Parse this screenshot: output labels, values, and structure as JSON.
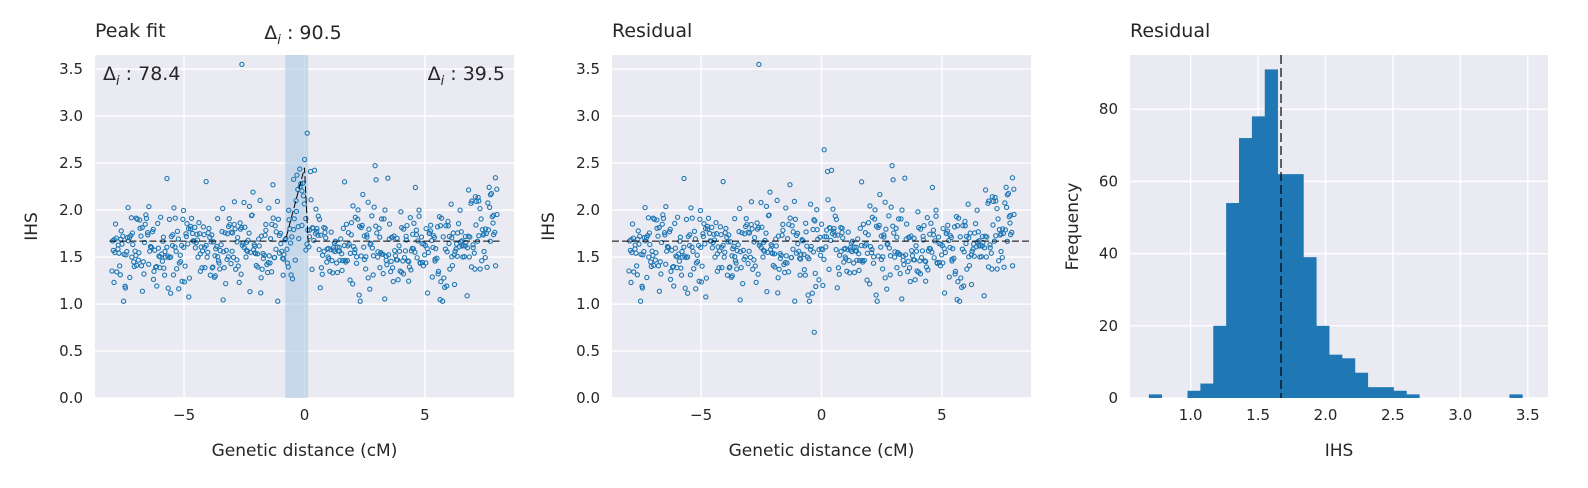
{
  "colors": {
    "panel_bg": "#EAEAF2",
    "grid": "#ffffff",
    "series": "#1f77b4",
    "band": "#a6c6e2",
    "ref_line": "#000000"
  },
  "chart_data": [
    {
      "type": "scatter",
      "title": "Peak fit",
      "xlabel": "Genetic distance (cM)",
      "ylabel": "IHS",
      "xlim": [
        -8.7,
        8.7
      ],
      "ylim": [
        0,
        3.65
      ],
      "xticks": [
        -5,
        0,
        5
      ],
      "xtick_labels": [
        "−5",
        "0",
        "5"
      ],
      "yticks": [
        0,
        0.5,
        1.0,
        1.5,
        2.0,
        2.5,
        3.0,
        3.5
      ],
      "ytick_labels": [
        "0.0",
        "0.5",
        "1.0",
        "1.5",
        "2.0",
        "2.5",
        "3.0",
        "3.5"
      ],
      "grid": true,
      "baseline": 1.67,
      "peak": {
        "start": -0.8,
        "center": 0,
        "end": 0.15,
        "height": 2.45
      },
      "band": [
        -0.8,
        0.15
      ],
      "annotations": {
        "left": {
          "symbol": "Δ",
          "subscript": "i",
          "sep": " : ",
          "value": "78.4"
        },
        "center": {
          "symbol": "Δ",
          "subscript": "i",
          "sep": " : ",
          "value": "90.5"
        },
        "right": {
          "symbol": "Δ",
          "subscript": "i",
          "sep": " : ",
          "value": "39.5"
        }
      },
      "points_description": "approximately 600 points between −8 and 8 cM, mostly 1.1–2.5 IHS, with an elevated peak near 0 cM and an upturn near 7 cM; one outlier at (−2.6, 3.55)",
      "x_range": [
        -8,
        8
      ],
      "outliers": [
        {
          "x": -2.6,
          "y": 3.55
        }
      ]
    },
    {
      "type": "scatter",
      "title": "Residual",
      "xlabel": "Genetic distance (cM)",
      "ylabel": "IHS",
      "xlim": [
        -8.7,
        8.7
      ],
      "ylim": [
        0,
        3.65
      ],
      "xticks": [
        -5,
        0,
        5
      ],
      "xtick_labels": [
        "−5",
        "0",
        "5"
      ],
      "yticks": [
        0,
        0.5,
        1.0,
        1.5,
        2.0,
        2.5,
        3.0,
        3.5
      ],
      "ytick_labels": [
        "0.0",
        "0.5",
        "1.0",
        "1.5",
        "2.0",
        "2.5",
        "3.0",
        "3.5"
      ],
      "grid": true,
      "baseline": 1.67,
      "x_range": [
        -8,
        8
      ],
      "outliers": [
        {
          "x": -2.6,
          "y": 3.55
        },
        {
          "x": -0.3,
          "y": 0.7
        }
      ]
    },
    {
      "type": "bar",
      "subtype": "histogram",
      "title": "Residual",
      "xlabel": "IHS",
      "ylabel": "Frequency",
      "xlim": [
        0.55,
        3.65
      ],
      "ylim": [
        0,
        95
      ],
      "xticks": [
        1.0,
        1.5,
        2.0,
        2.5,
        3.0,
        3.5
      ],
      "xtick_labels": [
        "1.0",
        "1.5",
        "2.0",
        "2.5",
        "3.0",
        "3.5"
      ],
      "yticks": [
        0,
        20,
        40,
        60,
        80
      ],
      "ytick_labels": [
        "0",
        "20",
        "40",
        "60",
        "80"
      ],
      "grid": true,
      "bin_start": 0.69,
      "bin_width": 0.0955,
      "counts": [
        1,
        0,
        0,
        2,
        4,
        20,
        54,
        72,
        78,
        91,
        62,
        62,
        39,
        20,
        12,
        11,
        7,
        3,
        3,
        2,
        1,
        0,
        0,
        0,
        0,
        0,
        0,
        0,
        1
      ],
      "mean_line": 1.67
    }
  ]
}
